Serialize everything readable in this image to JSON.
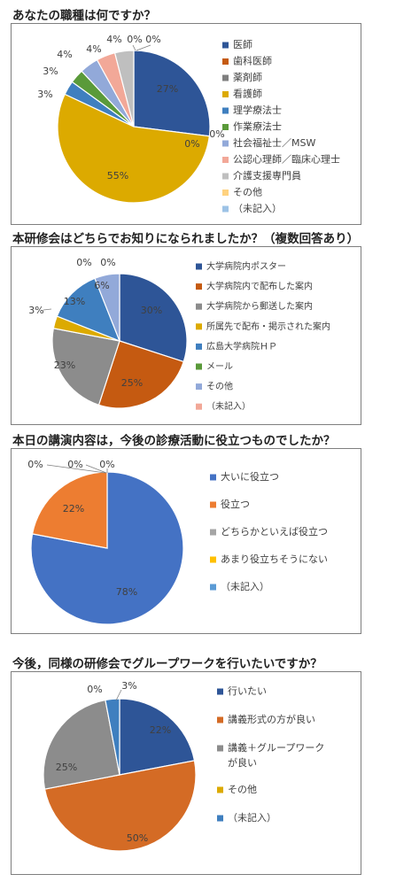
{
  "chart_data": [
    {
      "type": "pie",
      "title": "あなたの職種は何ですか？",
      "categories": [
        "医師",
        "歯科医師",
        "薬剤師",
        "看護師",
        "理学療法士",
        "作業療法士",
        "社会福祉士／MSW",
        "公認心理師／臨床心理士",
        "介護支援専門員",
        "その他",
        "（未記入）"
      ],
      "values": [
        27,
        0,
        0,
        55,
        3,
        3,
        4,
        4,
        4,
        0,
        0
      ],
      "labels": [
        "27%",
        "0%",
        "0%",
        "55%",
        "3%",
        "3%",
        "4%",
        "4%",
        "4%",
        "0%",
        "0%"
      ],
      "colors": [
        "#2e5597",
        "#c55a11",
        "#7f7f7f",
        "#dcaa00",
        "#3f7fbf",
        "#5a9a3a",
        "#92a9d9",
        "#f2a898",
        "#bfbfbf",
        "#ffd27f",
        "#9dc3e6"
      ],
      "legend": "right"
    },
    {
      "type": "pie",
      "title": "本研修会はどちらでお知りになられましたか？（複数回答あり）",
      "categories": [
        "大学病院内ポスター",
        "大学病院内で配布した案内",
        "大学病院から郵送した案内",
        "所属先で配布・掲示された案内",
        "広島大学病院ＨＰ",
        "メール",
        "その他",
        "（未記入）"
      ],
      "values": [
        30,
        25,
        23,
        3,
        13,
        0,
        6,
        0
      ],
      "labels": [
        "30%",
        "25%",
        "23%",
        "3%",
        "13%",
        "0%",
        "6%",
        "0%"
      ],
      "colors": [
        "#2e5597",
        "#c55a11",
        "#8c8c8c",
        "#dcaa00",
        "#3f7fbf",
        "#5a9a3a",
        "#92a9d9",
        "#f2a898"
      ],
      "legend": "right"
    },
    {
      "type": "pie",
      "title": "本日の講演内容は，今後の診療活動に役立つものでしたか？",
      "categories": [
        "大いに役立つ",
        "役立つ",
        "どちらかといえば役立つ",
        "あまり役立ちそうにない",
        "（未記入）"
      ],
      "values": [
        78,
        22,
        0,
        0,
        0
      ],
      "labels": [
        "78%",
        "22%",
        "0%",
        "0%",
        "0%"
      ],
      "colors": [
        "#4472c4",
        "#ed7d31",
        "#a5a5a5",
        "#ffc000",
        "#5b9bd5"
      ],
      "legend": "right"
    },
    {
      "type": "pie",
      "title": "今後，同様の研修会でグループワークを行いたいですか？",
      "categories": [
        "行いたい",
        "講義形式の方が良い",
        "講義＋グループワーク\nが良い",
        "その他",
        "（未記入）"
      ],
      "values": [
        22,
        50,
        25,
        0,
        3
      ],
      "labels": [
        "22%",
        "50%",
        "25%",
        "0%",
        "3%"
      ],
      "colors": [
        "#2e5597",
        "#d46b25",
        "#8c8c8c",
        "#dcaa00",
        "#3f7fbf"
      ],
      "legend": "right"
    }
  ]
}
